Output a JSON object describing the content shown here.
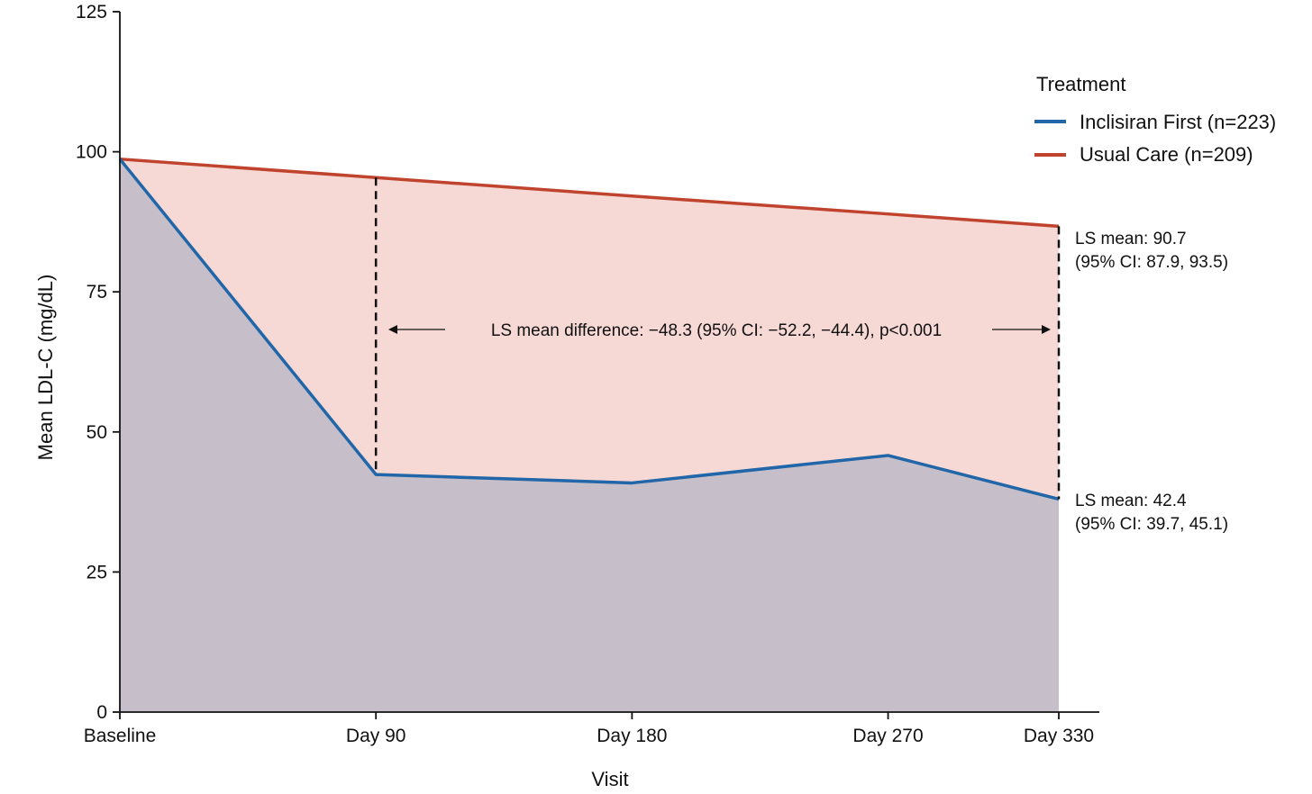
{
  "chart_data": {
    "type": "area",
    "title": "",
    "xlabel": "Visit",
    "ylabel": "Mean LDL-C (mg/dL)",
    "categories": [
      "Baseline",
      "Day 90",
      "Day 180",
      "Day 270",
      "Day 330"
    ],
    "x": [
      0,
      90,
      180,
      270,
      330
    ],
    "ylim": [
      0,
      125
    ],
    "yticks": [
      "0",
      "25",
      "50",
      "75",
      "100",
      "125"
    ],
    "grid": false,
    "legend": {
      "title": "Treatment",
      "position": "top-right"
    },
    "series": [
      {
        "name": "Inclisiran First (n=223)",
        "color": "#2066a8",
        "fill": "#c6bfca",
        "values": [
          98.7,
          42.4,
          40.9,
          45.8,
          38.0
        ]
      },
      {
        "name": "Usual Care (n=209)",
        "color": "#c0432e",
        "fill": "#f6d8d5",
        "values": [
          98.7,
          95.4,
          92.1,
          88.9,
          86.7
        ]
      }
    ],
    "annotations": {
      "usual_care_ls_line1": "LS mean: 90.7",
      "usual_care_ls_line2": "(95% CI: 87.9, 93.5)",
      "inclisiran_ls_line1": "LS mean: 42.4",
      "inclisiran_ls_line2": "(95% CI: 39.7, 45.1)",
      "difference": "LS mean difference: −48.3 (95% CI: −52.2, −44.4), p<0.001"
    },
    "colors": {
      "axis": "#111111",
      "dashed_line": "#111111"
    }
  }
}
